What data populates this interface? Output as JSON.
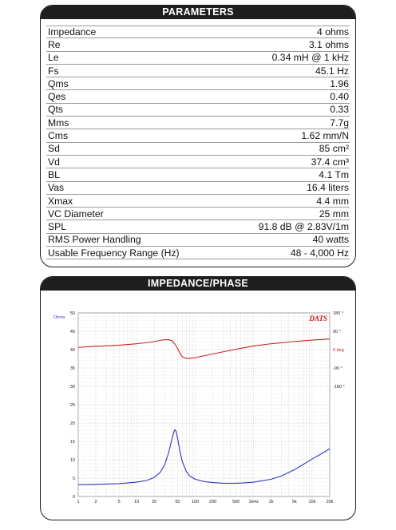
{
  "parameters": {
    "title": "PARAMETERS",
    "rows": [
      {
        "label": "Impedance",
        "value": "4 ohms"
      },
      {
        "label": "Re",
        "value": "3.1 ohms"
      },
      {
        "label": "Le",
        "value": "0.34 mH @ 1 kHz"
      },
      {
        "label": "Fs",
        "value": "45.1 Hz"
      },
      {
        "label": "Qms",
        "value": "1.96"
      },
      {
        "label": "Qes",
        "value": "0.40"
      },
      {
        "label": "Qts",
        "value": "0.33"
      },
      {
        "label": "Mms",
        "value": "7.7g"
      },
      {
        "label": "Cms",
        "value": "1.62 mm/N"
      },
      {
        "label": "Sd",
        "value": "85 cm²"
      },
      {
        "label": "Vd",
        "value": "37.4 cm³"
      },
      {
        "label": "BL",
        "value": "4.1 Tm"
      },
      {
        "label": "Vas",
        "value": "16.4 liters"
      },
      {
        "label": "Xmax",
        "value": "4.4 mm"
      },
      {
        "label": "VC Diameter",
        "value": "25 mm"
      },
      {
        "label": "SPL",
        "value": "91.8 dB @ 2.83V/1m"
      },
      {
        "label": "RMS Power Handling",
        "value": "40 watts"
      },
      {
        "label": "Usable Frequency Range (Hz)",
        "value": "48 - 4,000 Hz"
      }
    ]
  },
  "chart_data": {
    "type": "line",
    "title": "IMPEDANCE/PHASE",
    "brand": "DATS",
    "left_axis_label": "Ohms",
    "right_axis_label": "0 deg",
    "ylim": [
      0,
      50
    ],
    "y_ticks": [
      0,
      5,
      10,
      15,
      20,
      25,
      30,
      35,
      40,
      45,
      50
    ],
    "phase_ticks": [
      {
        "text": "180 °",
        "ohm": 50
      },
      {
        "text": "90 °",
        "ohm": 45
      },
      {
        "text": "0 deg",
        "ohm": 40
      },
      {
        "text": "-90 °",
        "ohm": 35
      },
      {
        "text": "-180 °",
        "ohm": 30
      }
    ],
    "xlim": [
      1,
      20000
    ],
    "x_scale": "log",
    "x_ticks": [
      {
        "value": 1,
        "label": "1"
      },
      {
        "value": 2,
        "label": "2"
      },
      {
        "value": 5,
        "label": "5"
      },
      {
        "value": 10,
        "label": "10"
      },
      {
        "value": 20,
        "label": "20"
      },
      {
        "value": 50,
        "label": "50"
      },
      {
        "value": 100,
        "label": "100"
      },
      {
        "value": 200,
        "label": "200"
      },
      {
        "value": 500,
        "label": "500"
      },
      {
        "value": 1000,
        "label": "1kHz"
      },
      {
        "value": 2000,
        "label": "2k"
      },
      {
        "value": 5000,
        "label": "5k"
      },
      {
        "value": 10000,
        "label": "10k"
      },
      {
        "value": 20000,
        "label": "20k"
      }
    ],
    "grid": true,
    "series": [
      {
        "color": "#3333cc",
        "x": [
          1,
          2,
          5,
          10,
          15,
          20,
          25,
          30,
          35,
          40,
          43,
          45,
          47,
          50,
          55,
          60,
          70,
          80,
          100,
          150,
          200,
          300,
          500,
          700,
          1000,
          2000,
          3000,
          5000,
          7000,
          10000,
          15000,
          20000
        ],
        "y": [
          3.2,
          3.3,
          3.5,
          3.9,
          4.4,
          5.2,
          6.5,
          8.6,
          11.8,
          15.6,
          17.5,
          18.2,
          17.8,
          15.9,
          12.2,
          9.6,
          6.9,
          5.6,
          4.7,
          4.0,
          3.8,
          3.6,
          3.6,
          3.7,
          3.9,
          4.7,
          5.6,
          7.3,
          8.7,
          10.2,
          11.8,
          13.0
        ]
      },
      {
        "color": "#cc2222",
        "x": [
          1,
          2,
          5,
          10,
          15,
          20,
          25,
          30,
          35,
          40,
          45,
          50,
          55,
          60,
          70,
          80,
          100,
          150,
          200,
          300,
          500,
          1000,
          2000,
          5000,
          10000,
          20000
        ],
        "y": [
          40.6,
          40.9,
          41.2,
          41.6,
          41.9,
          42.2,
          42.5,
          42.7,
          42.7,
          42.4,
          41.5,
          40.3,
          39.0,
          38.1,
          37.6,
          37.6,
          37.8,
          38.4,
          38.8,
          39.4,
          40.1,
          41.0,
          41.6,
          42.2,
          42.6,
          42.9
        ]
      }
    ]
  }
}
